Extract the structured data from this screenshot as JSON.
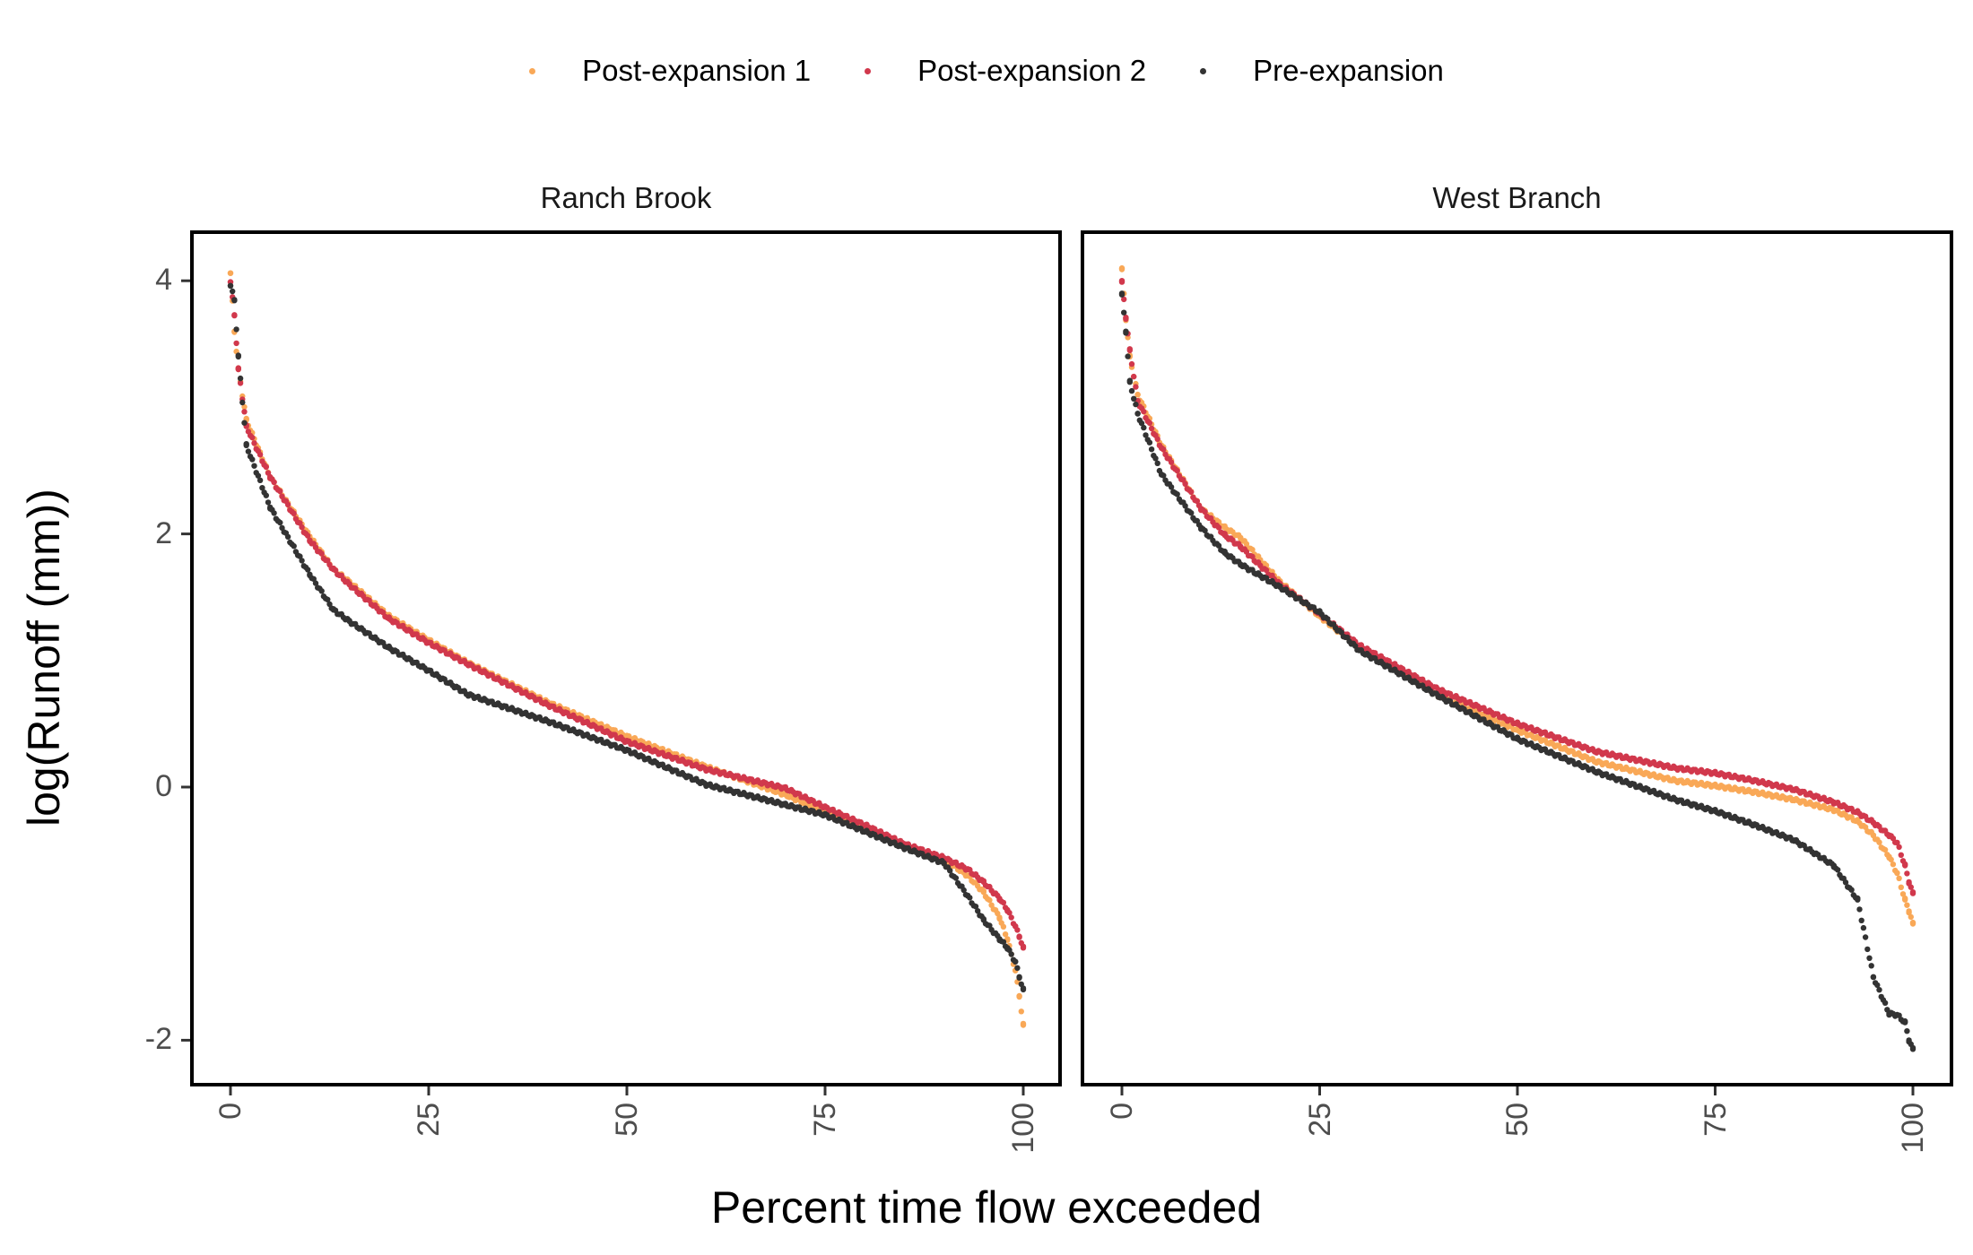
{
  "chart_data": {
    "type": "scatter",
    "title": "",
    "xlabel": "Percent time flow exceeded",
    "ylabel": "log(Runoff (mm))",
    "xlim": [
      0,
      100
    ],
    "ylim": [
      -2.35,
      4.3
    ],
    "xticks": [
      "0",
      "25",
      "50",
      "75",
      "100"
    ],
    "yticks": [
      "-2",
      "0",
      "2",
      "4"
    ],
    "grid": false,
    "legend": {
      "position": "top",
      "entries": [
        {
          "name": "Post-expansion 1",
          "color": "#F9A857"
        },
        {
          "name": "Post-expansion 2",
          "color": "#D1384C"
        },
        {
          "name": "Pre-expansion",
          "color": "#333333"
        }
      ]
    },
    "x": [
      0,
      0.5,
      1,
      2,
      5,
      10,
      13,
      15,
      20,
      25,
      30,
      40,
      50,
      60,
      70,
      75,
      80,
      85,
      90,
      93,
      95,
      97,
      98,
      99,
      99.5,
      100
    ],
    "panels": [
      {
        "title": "Ranch Brook",
        "series": [
          {
            "name": "Post-expansion 1",
            "values": [
              4.06,
              3.6,
              3.3,
              2.9,
              2.45,
              1.98,
              1.72,
              1.62,
              1.35,
              1.16,
              0.98,
              0.67,
              0.4,
              0.16,
              -0.06,
              -0.2,
              -0.33,
              -0.47,
              -0.57,
              -0.7,
              -0.83,
              -1.03,
              -1.2,
              -1.45,
              -1.65,
              -1.88
            ]
          },
          {
            "name": "Post-expansion 2",
            "values": [
              3.99,
              3.73,
              3.3,
              2.85,
              2.45,
              1.95,
              1.72,
              1.6,
              1.33,
              1.14,
              0.97,
              0.65,
              0.36,
              0.14,
              -0.01,
              -0.16,
              -0.3,
              -0.45,
              -0.56,
              -0.65,
              -0.75,
              -0.88,
              -0.97,
              -1.1,
              -1.18,
              -1.27
            ]
          },
          {
            "name": "Pre-expansion",
            "values": [
              3.96,
              3.85,
              3.4,
              2.7,
              2.21,
              1.68,
              1.4,
              1.31,
              1.1,
              0.92,
              0.73,
              0.52,
              0.29,
              0.02,
              -0.14,
              -0.22,
              -0.35,
              -0.48,
              -0.6,
              -0.86,
              -1.05,
              -1.2,
              -1.27,
              -1.38,
              -1.5,
              -1.6
            ]
          }
        ]
      },
      {
        "title": "West Branch",
        "series": [
          {
            "name": "Post-expansion 1",
            "values": [
              4.09,
              3.7,
              3.4,
              3.1,
              2.7,
              2.2,
              2.05,
              1.97,
              1.62,
              1.35,
              1.1,
              0.72,
              0.45,
              0.2,
              0.05,
              0.01,
              -0.04,
              -0.1,
              -0.18,
              -0.27,
              -0.38,
              -0.55,
              -0.68,
              -0.89,
              -0.98,
              -1.08
            ]
          },
          {
            "name": "Post-expansion 2",
            "values": [
              3.99,
              3.71,
              3.45,
              3.05,
              2.68,
              2.2,
              1.99,
              1.9,
              1.6,
              1.37,
              1.12,
              0.77,
              0.5,
              0.28,
              0.15,
              0.11,
              0.05,
              -0.02,
              -0.12,
              -0.2,
              -0.28,
              -0.38,
              -0.44,
              -0.62,
              -0.75,
              -0.84
            ]
          },
          {
            "name": "Pre-expansion",
            "values": [
              3.89,
              3.6,
              3.2,
              2.95,
              2.47,
              2.05,
              1.85,
              1.76,
              1.58,
              1.38,
              1.08,
              0.72,
              0.38,
              0.12,
              -0.1,
              -0.19,
              -0.3,
              -0.42,
              -0.62,
              -0.89,
              -1.5,
              -1.79,
              -1.8,
              -1.86,
              -2.0,
              -2.07
            ]
          }
        ]
      }
    ]
  }
}
